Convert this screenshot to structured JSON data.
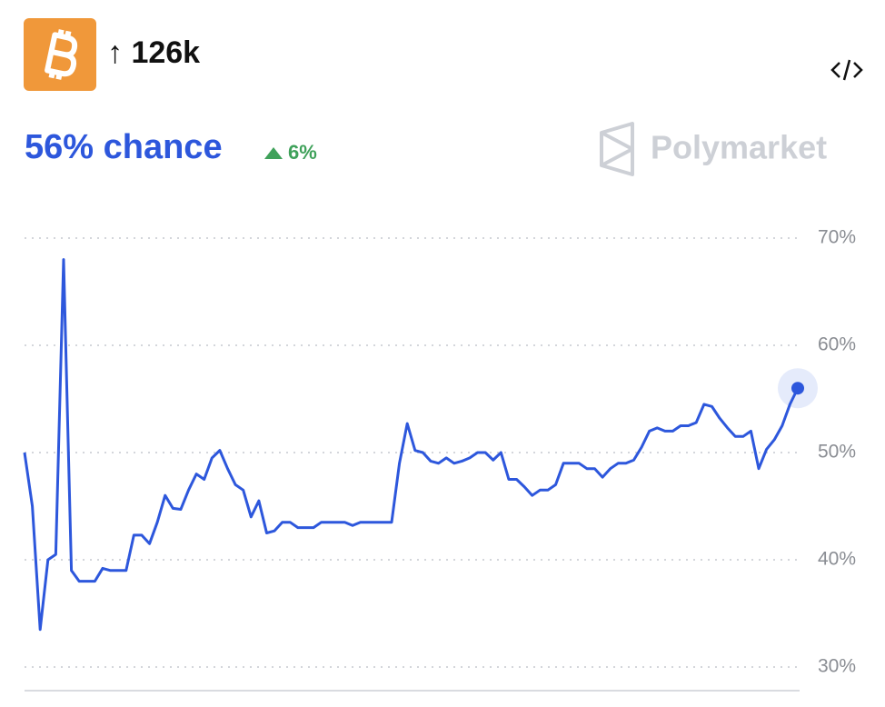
{
  "header": {
    "title": "↑ 126k",
    "headline": "56% chance",
    "change": "6%",
    "brand": "Polymarket"
  },
  "chart_data": {
    "type": "line",
    "series": [
      {
        "color": "#2d57dc",
        "values": [
          50,
          45,
          33.5,
          40,
          40.5,
          68,
          39,
          38,
          38,
          38,
          39.2,
          39,
          39,
          39,
          42.3,
          42.3,
          41.5,
          43.5,
          46,
          44.8,
          44.7,
          46.5,
          48,
          47.5,
          49.5,
          50.2,
          48.5,
          47,
          46.5,
          44,
          45.5,
          42.5,
          42.7,
          43.5,
          43.5,
          43,
          43,
          43,
          43.5,
          43.5,
          43.5,
          43.5,
          43.2,
          43.5,
          43.5,
          43.5,
          43.5,
          43.5,
          49,
          52.7,
          50.2,
          50,
          49.2,
          49,
          49.5,
          49,
          49.2,
          49.5,
          50,
          50,
          49.3,
          50,
          47.5,
          47.5,
          46.8,
          46,
          46.5,
          46.5,
          47,
          49,
          49,
          49,
          48.5,
          48.5,
          47.7,
          48.5,
          49,
          49,
          49.3,
          50.5,
          52,
          52.3,
          52,
          52,
          52.5,
          52.5,
          52.8,
          54.5,
          54.3,
          53.2,
          52.3,
          51.5,
          51.5,
          52,
          48.5,
          50.3,
          51.2,
          52.5,
          54.5,
          56
        ]
      }
    ],
    "ylim": [
      30,
      70
    ],
    "yticks": [
      {
        "value": 30,
        "label": "30%"
      },
      {
        "value": 40,
        "label": "40%"
      },
      {
        "value": 50,
        "label": "50%"
      },
      {
        "value": 60,
        "label": "60%"
      },
      {
        "value": 70,
        "label": "70%"
      }
    ],
    "grid": true
  }
}
